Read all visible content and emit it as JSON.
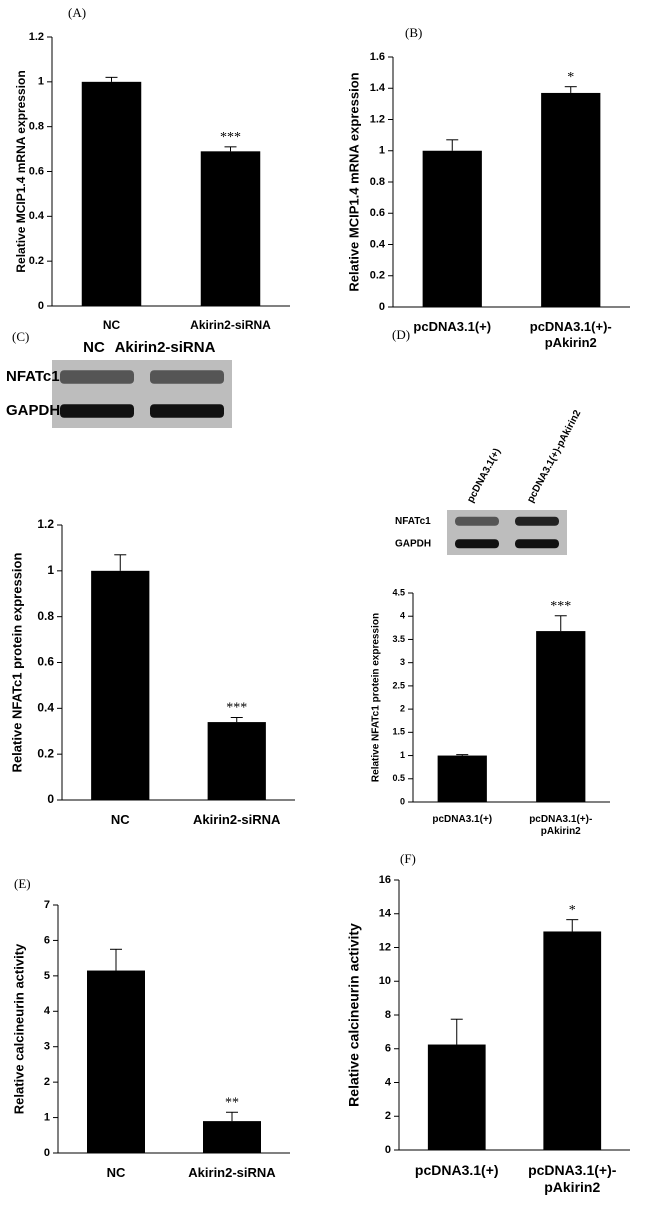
{
  "chart_data": [
    {
      "type": "bar",
      "panel_label": "(A)",
      "ylabel": "Relative MCIP1.4 mRNA expression",
      "categories": [
        "NC",
        "Akirin2-siRNA"
      ],
      "values": [
        1.0,
        0.69
      ],
      "errors": [
        0.02,
        0.02
      ],
      "significance": [
        null,
        "***"
      ],
      "color": "#000000",
      "ylim": [
        0,
        1.2
      ],
      "yticks": [
        0,
        0.2,
        0.4,
        0.6,
        0.8,
        1,
        1.2
      ]
    },
    {
      "type": "bar",
      "panel_label": "(B)",
      "ylabel": "Relative MCIP1.4 mRNA expression",
      "categories": [
        "pcDNA3.1(+)",
        "pcDNA3.1(+)-pAkirin2"
      ],
      "values": [
        1.0,
        1.37
      ],
      "errors": [
        0.07,
        0.04
      ],
      "significance": [
        null,
        "*"
      ],
      "color": "#000000",
      "ylim": [
        0,
        1.6
      ],
      "yticks": [
        0,
        0.2,
        0.4,
        0.6,
        0.8,
        1,
        1.2,
        1.4,
        1.6
      ]
    },
    {
      "type": "bar",
      "panel_label": "(C)",
      "ylabel": "Relative NFATc1 protein expression",
      "blot_lanes": [
        "NC",
        "Akirin2-siRNA"
      ],
      "blot_rows": [
        "NFATc1",
        "GAPDH"
      ],
      "categories": [
        "NC",
        "Akirin2-siRNA"
      ],
      "values": [
        1.0,
        0.34
      ],
      "errors": [
        0.07,
        0.02
      ],
      "significance": [
        null,
        "***"
      ],
      "color": "#000000",
      "ylim": [
        0,
        1.2
      ],
      "yticks": [
        0,
        0.2,
        0.4,
        0.6,
        0.8,
        1,
        1.2
      ]
    },
    {
      "type": "bar",
      "panel_label": "(D)",
      "ylabel": "Relative NFATc1 protein expression",
      "blot_lanes": [
        "pcDNA3.1(+)",
        "pcDNA3.1(+)-pAkirin2"
      ],
      "blot_rows": [
        "NFATc1",
        "GAPDH"
      ],
      "categories": [
        "pcDNA3.1(+)",
        "pcDNA3.1(+)-pAkirin2"
      ],
      "values": [
        1.0,
        3.68
      ],
      "errors": [
        0.02,
        0.33
      ],
      "significance": [
        null,
        "***"
      ],
      "color": "#000000",
      "ylim": [
        0,
        4.5
      ],
      "yticks": [
        0,
        0.5,
        1,
        1.5,
        2,
        2.5,
        3,
        3.5,
        4,
        4.5
      ]
    },
    {
      "type": "bar",
      "panel_label": "(E)",
      "ylabel": "Relative calcineurin activity",
      "categories": [
        "NC",
        "Akirin2-siRNA"
      ],
      "values": [
        5.15,
        0.9
      ],
      "errors": [
        0.6,
        0.25
      ],
      "significance": [
        null,
        "**"
      ],
      "color": "#000000",
      "ylim": [
        0,
        7
      ],
      "yticks": [
        0,
        1,
        2,
        3,
        4,
        5,
        6,
        7
      ]
    },
    {
      "type": "bar",
      "panel_label": "(F)",
      "ylabel": "Relative calcineurin activity",
      "categories": [
        "pcDNA3.1(+)",
        "pcDNA3.1(+)-pAkirin2"
      ],
      "values": [
        6.25,
        12.95
      ],
      "errors": [
        1.5,
        0.7
      ],
      "significance": [
        null,
        "*"
      ],
      "color": "#000000",
      "ylim": [
        0,
        16
      ],
      "yticks": [
        0,
        2,
        4,
        6,
        8,
        10,
        12,
        14,
        16
      ]
    }
  ]
}
